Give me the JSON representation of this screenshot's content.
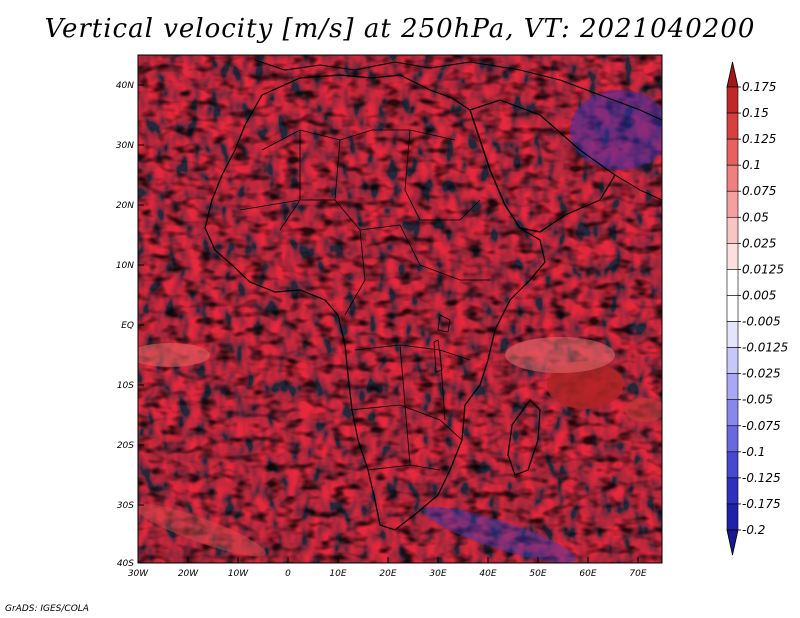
{
  "title": "Vertical velocity [m/s] at 250hPa, VT: 2021040200",
  "credit": "GrADS: IGES/COLA",
  "map": {
    "lon_labels": [
      "30W",
      "20W",
      "10W",
      "0",
      "10E",
      "20E",
      "30E",
      "40E",
      "50E",
      "60E",
      "70E"
    ],
    "lat_labels": [
      "40N",
      "30N",
      "20N",
      "10N",
      "EQ",
      "10S",
      "20S",
      "30S",
      "40S"
    ]
  },
  "colorbar": {
    "levels": [
      "0.175",
      "0.15",
      "0.125",
      "0.1",
      "0.075",
      "0.05",
      "0.025",
      "0.0125",
      "0.005",
      "-0.005",
      "-0.0125",
      "-0.025",
      "-0.05",
      "-0.075",
      "-0.1",
      "-0.125",
      "-0.175",
      "-0.2"
    ],
    "colors": [
      "#a01818",
      "#c02828",
      "#d84040",
      "#e86060",
      "#f08080",
      "#f4a0a0",
      "#f8c4c4",
      "#fce0e0",
      "#ffffff",
      "#ffffff",
      "#e4e4fc",
      "#c8c8f8",
      "#a8a8f4",
      "#8888ec",
      "#6868e0",
      "#4848d0",
      "#3030c0",
      "#2020a8",
      "#181890"
    ]
  }
}
